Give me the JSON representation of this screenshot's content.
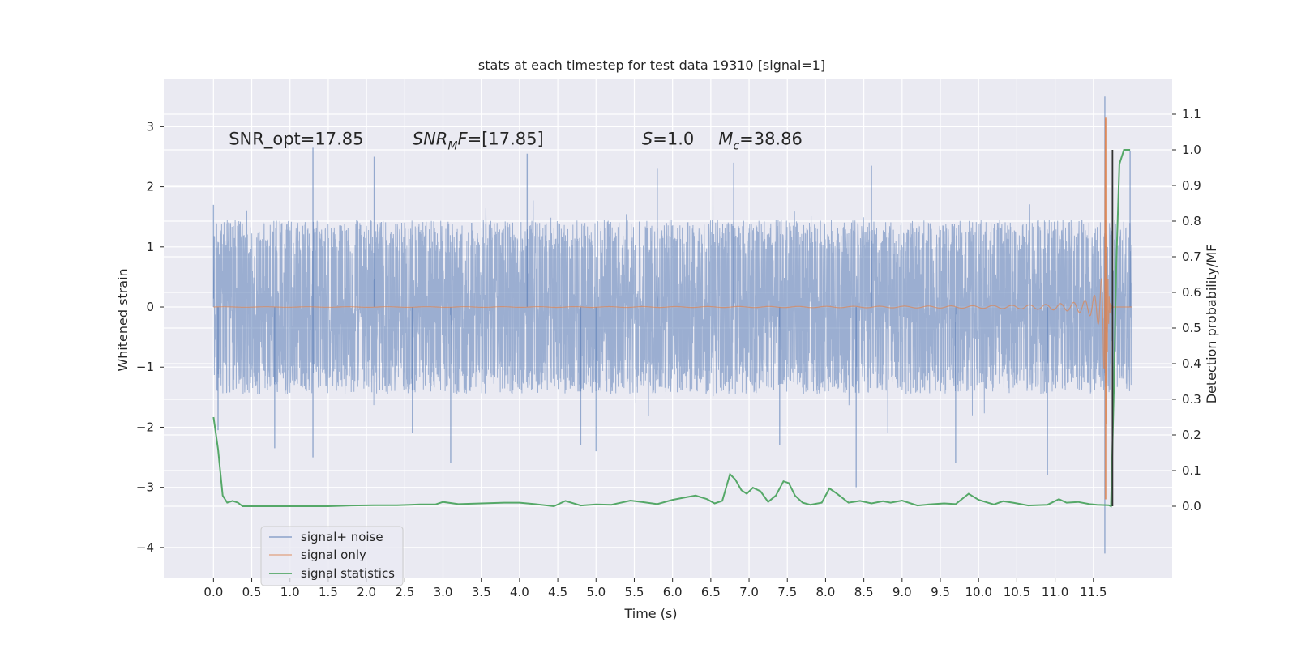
{
  "chart_data": {
    "type": "line",
    "title": "stats at each timestep for test data 19310 [signal=1]",
    "xlabel": "Time (s)",
    "ylabel": "Whitened strain",
    "ylabel_right": "Detection probability/MF",
    "xlim": [
      -0.65,
      12.53
    ],
    "ylim": [
      -4.5,
      3.8
    ],
    "ylim_right": [
      -0.2,
      1.2
    ],
    "grid": true,
    "x_ticks": [
      0.0,
      0.5,
      1.0,
      1.5,
      2.0,
      2.5,
      3.0,
      3.5,
      4.0,
      4.5,
      5.0,
      5.5,
      6.0,
      6.5,
      7.0,
      7.5,
      8.0,
      8.5,
      9.0,
      9.5,
      10.0,
      10.5,
      11.0,
      11.5
    ],
    "x_tick_labels": [
      "0.0",
      "0.5",
      "1.0",
      "1.5",
      "2.0",
      "2.5",
      "3.0",
      "3.5",
      "4.0",
      "4.5",
      "5.0",
      "5.5",
      "6.0",
      "6.5",
      "7.0",
      "7.5",
      "8.0",
      "8.5",
      "9.0",
      "9.5",
      "10.0",
      "10.5",
      "11.0",
      "11.5"
    ],
    "y_ticks": [
      -4,
      -3,
      -2,
      -1,
      0,
      1,
      2,
      3
    ],
    "y_tick_labels": [
      "−4",
      "−3",
      "−2",
      "−1",
      "0",
      "1",
      "2",
      "3"
    ],
    "y_right_ticks": [
      0.0,
      0.1,
      0.2,
      0.3,
      0.4,
      0.5,
      0.6,
      0.7,
      0.8,
      0.9,
      1.0,
      1.1
    ],
    "y_right_tick_labels": [
      "0.0",
      "0.1",
      "0.2",
      "0.3",
      "0.4",
      "0.5",
      "0.6",
      "0.7",
      "0.8",
      "0.9",
      "1.0",
      "1.1"
    ],
    "legend_position": "lower-left",
    "annotations": [
      {
        "name": "snr-opt",
        "text": "SNR_opt=17.85",
        "x": 0.2,
        "y": 2.7
      },
      {
        "name": "snr-mf",
        "text": "SNR_MF=[17.85]",
        "x": 2.6,
        "y": 2.7
      },
      {
        "name": "s-value",
        "text": "S=1.0",
        "x": 5.6,
        "y": 2.7
      },
      {
        "name": "chirp-mass",
        "text": "M_c=38.86",
        "x": 6.6,
        "y": 2.7
      }
    ],
    "merger_marker": {
      "x": 11.75,
      "y_right_range": [
        0.0,
        1.0
      ],
      "color": "#333333"
    },
    "series": [
      {
        "name": "signal+ noise",
        "axis": "left",
        "color": "#4c72b0",
        "opacity": 0.5,
        "description": "dense whitened-strain noise band spanning 0.0–12.0 s",
        "x_range": [
          0.0,
          12.0
        ],
        "typical_band": [
          -1.45,
          1.45
        ],
        "peaks": [
          {
            "x": 0.0,
            "y": 1.7
          },
          {
            "x": 0.06,
            "y": -2.05
          },
          {
            "x": 0.8,
            "y": -2.35
          },
          {
            "x": 1.3,
            "y": 2.65
          },
          {
            "x": 1.3,
            "y": -2.5
          },
          {
            "x": 2.1,
            "y": 2.5
          },
          {
            "x": 2.6,
            "y": -2.1
          },
          {
            "x": 3.1,
            "y": -2.6
          },
          {
            "x": 4.1,
            "y": 2.55
          },
          {
            "x": 4.8,
            "y": -2.3
          },
          {
            "x": 5.0,
            "y": -2.4
          },
          {
            "x": 5.8,
            "y": 2.3
          },
          {
            "x": 6.8,
            "y": 2.4
          },
          {
            "x": 7.4,
            "y": -2.3
          },
          {
            "x": 8.4,
            "y": -3.0
          },
          {
            "x": 8.6,
            "y": 2.35
          },
          {
            "x": 9.7,
            "y": -2.6
          },
          {
            "x": 10.9,
            "y": -2.8
          },
          {
            "x": 11.65,
            "y": 3.5
          },
          {
            "x": 11.65,
            "y": -4.1
          },
          {
            "x": 11.98,
            "y": 2.6
          }
        ]
      },
      {
        "name": "signal only",
        "axis": "left",
        "color": "#dd8452",
        "description": "chirp waveform growing toward merger at ~11.68 s",
        "x_range": [
          0.0,
          12.0
        ],
        "peak": {
          "x": 11.66,
          "y": 3.15,
          "y_min": -3.2
        }
      },
      {
        "name": "signal statistics",
        "axis": "right",
        "color": "#55a868",
        "x": [
          0.0,
          0.06,
          0.12,
          0.18,
          0.25,
          0.32,
          0.38,
          0.5,
          0.6,
          0.8,
          1.0,
          1.2,
          1.5,
          1.8,
          2.1,
          2.4,
          2.7,
          2.9,
          3.0,
          3.2,
          3.5,
          3.8,
          4.0,
          4.2,
          4.45,
          4.6,
          4.8,
          5.0,
          5.2,
          5.45,
          5.6,
          5.8,
          6.0,
          6.15,
          6.3,
          6.45,
          6.55,
          6.65,
          6.75,
          6.82,
          6.9,
          6.97,
          7.05,
          7.15,
          7.25,
          7.35,
          7.45,
          7.52,
          7.6,
          7.7,
          7.8,
          7.95,
          8.05,
          8.15,
          8.3,
          8.45,
          8.6,
          8.75,
          8.85,
          9.0,
          9.2,
          9.35,
          9.55,
          9.7,
          9.87,
          10.0,
          10.12,
          10.2,
          10.32,
          10.45,
          10.65,
          10.9,
          11.05,
          11.15,
          11.3,
          11.45,
          11.55,
          11.7,
          11.73,
          11.77,
          11.8,
          11.84,
          11.9,
          11.98
        ],
        "y": [
          0.25,
          0.16,
          0.03,
          0.01,
          0.015,
          0.01,
          0.0,
          0.0,
          0.0,
          0.0,
          0.0,
          0.0,
          0.0,
          0.002,
          0.003,
          0.003,
          0.005,
          0.005,
          0.012,
          0.006,
          0.008,
          0.01,
          0.01,
          0.006,
          0.0,
          0.015,
          0.002,
          0.005,
          0.004,
          0.016,
          0.012,
          0.006,
          0.018,
          0.024,
          0.03,
          0.02,
          0.008,
          0.015,
          0.09,
          0.075,
          0.045,
          0.035,
          0.052,
          0.042,
          0.012,
          0.03,
          0.07,
          0.065,
          0.03,
          0.01,
          0.004,
          0.01,
          0.05,
          0.035,
          0.01,
          0.015,
          0.008,
          0.014,
          0.01,
          0.016,
          0.002,
          0.005,
          0.008,
          0.006,
          0.035,
          0.018,
          0.01,
          0.005,
          0.014,
          0.01,
          0.002,
          0.004,
          0.02,
          0.01,
          0.012,
          0.006,
          0.004,
          0.003,
          0.0,
          0.35,
          0.68,
          0.96,
          1.0,
          1.0
        ]
      }
    ]
  }
}
